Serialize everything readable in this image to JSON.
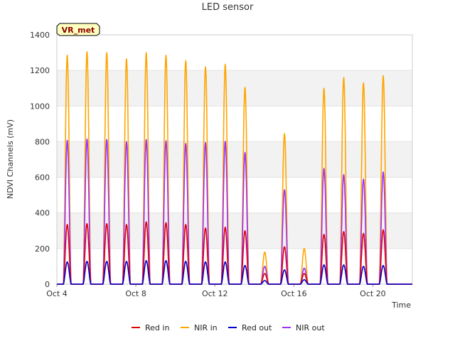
{
  "chart_data": {
    "type": "line",
    "title": "LED sensor",
    "xlabel": "Time",
    "ylabel": "NDVI Channels (mV)",
    "ylim": [
      0,
      1400
    ],
    "yticks": [
      0,
      200,
      400,
      600,
      800,
      1000,
      1200,
      1400
    ],
    "xlim": [
      "2023-10-04",
      "2023-10-22"
    ],
    "xticks": [
      {
        "date": "2023-10-04",
        "label": "Oct 4"
      },
      {
        "date": "2023-10-08",
        "label": "Oct 8"
      },
      {
        "date": "2023-10-12",
        "label": "Oct 12"
      },
      {
        "date": "2023-10-16",
        "label": "Oct 16"
      },
      {
        "date": "2023-10-20",
        "label": "Oct 20"
      }
    ],
    "grid": "horizontal bands",
    "legend_position": "bottom",
    "badge": "VR_met",
    "x": [
      "2023-10-04",
      "2023-10-05",
      "2023-10-06",
      "2023-10-07",
      "2023-10-08",
      "2023-10-09",
      "2023-10-10",
      "2023-10-11",
      "2023-10-12",
      "2023-10-13",
      "2023-10-14",
      "2023-10-15",
      "2023-10-16",
      "2023-10-17",
      "2023-10-18",
      "2023-10-19",
      "2023-10-20",
      "2023-10-21"
    ],
    "series": [
      {
        "name": "Red in",
        "color": "#dd0000",
        "values": [
          335,
          340,
          340,
          335,
          350,
          345,
          335,
          315,
          320,
          300,
          60,
          210,
          60,
          280,
          295,
          285,
          305,
          0
        ]
      },
      {
        "name": "NIR in",
        "color": "#ffa500",
        "values": [
          1285,
          1305,
          1300,
          1265,
          1300,
          1285,
          1255,
          1220,
          1235,
          1105,
          180,
          845,
          200,
          1100,
          1160,
          1130,
          1170,
          0
        ]
      },
      {
        "name": "Red out",
        "color": "#0000cc",
        "values": [
          125,
          128,
          128,
          128,
          132,
          132,
          128,
          125,
          125,
          105,
          20,
          80,
          25,
          108,
          108,
          100,
          105,
          0
        ]
      },
      {
        "name": "NIR out",
        "color": "#9b30ff",
        "values": [
          808,
          815,
          812,
          800,
          812,
          805,
          790,
          795,
          802,
          740,
          100,
          530,
          90,
          650,
          615,
          590,
          630,
          0
        ]
      }
    ]
  }
}
